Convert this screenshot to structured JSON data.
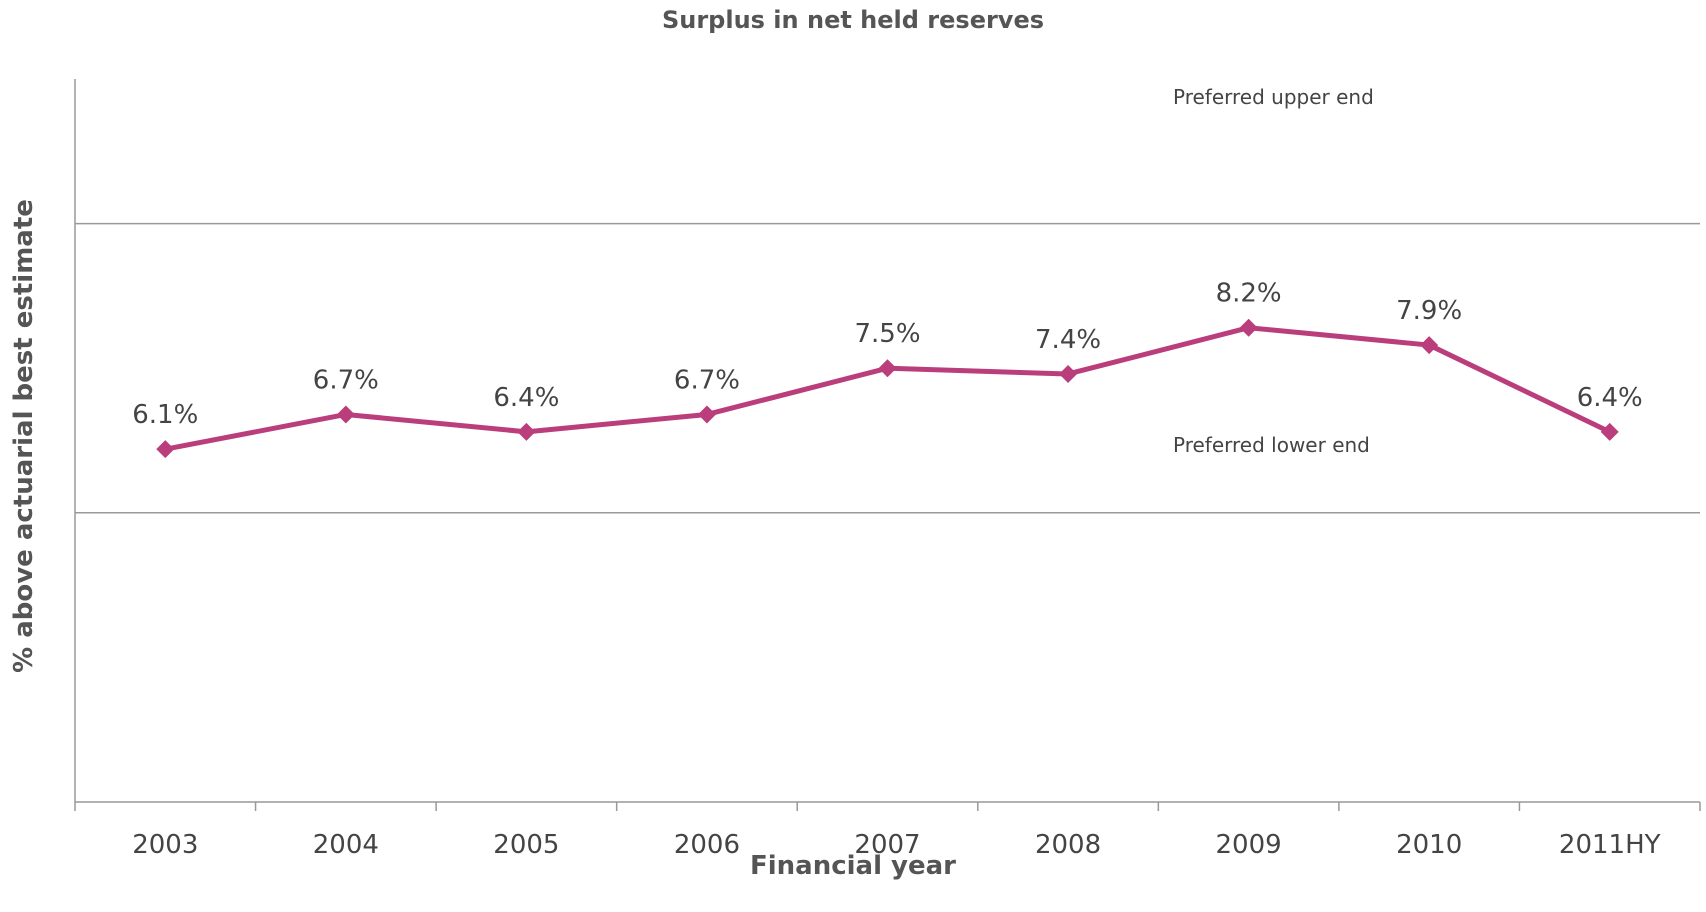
{
  "chart_data": {
    "type": "line",
    "title": "Surplus in net held reserves",
    "xlabel": "Financial year",
    "ylabel": "% above actuarial best estimate",
    "categories": [
      "2003",
      "2004",
      "2005",
      "2006",
      "2007",
      "2008",
      "2009",
      "2010",
      "2011HY"
    ],
    "series": [
      {
        "values": [
          6.1,
          6.7,
          6.4,
          6.7,
          7.5,
          7.4,
          8.2,
          7.9,
          6.4
        ],
        "data_labels": [
          "6.1%",
          "6.7%",
          "6.4%",
          "6.7%",
          "7.5%",
          "7.4%",
          "8.2%",
          "7.9%",
          "6.4%"
        ],
        "color": "#BB3E7C",
        "marker": "diamond"
      }
    ],
    "reference_lines": [
      {
        "value": 10,
        "label": "Preferred upper end"
      },
      {
        "value": 5,
        "label": "Preferred lower end"
      }
    ],
    "ylim": [
      0,
      12.5
    ],
    "grid": false
  }
}
